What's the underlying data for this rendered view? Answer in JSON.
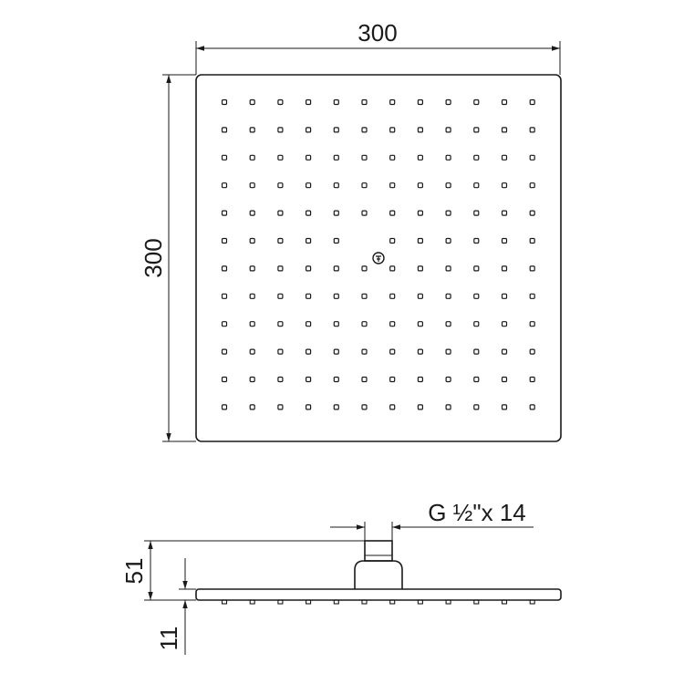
{
  "dimensions": {
    "top_width": "300",
    "top_height": "300",
    "connection": "G ½\"x 14",
    "side_total_height": "51",
    "side_plate_thickness": "11"
  },
  "nozzle_grid": {
    "rows": 12,
    "cols": 12
  },
  "side_nozzle_count": 12,
  "logo_icon": "tv-logo-icon",
  "colors": {
    "line": "#1a1a1a",
    "background": "#ffffff"
  }
}
